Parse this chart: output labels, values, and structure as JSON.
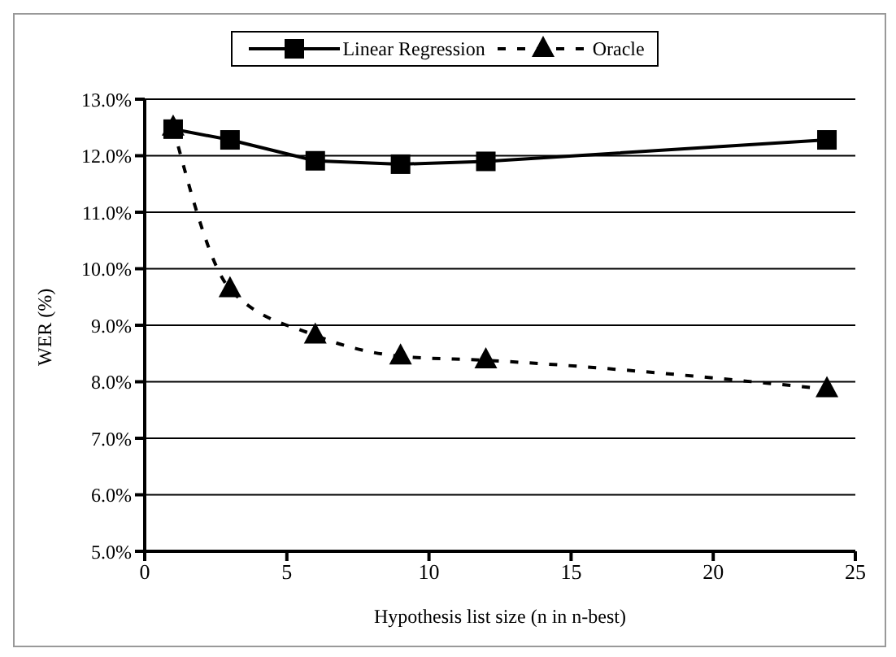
{
  "chart_data": {
    "type": "line",
    "xlabel": "Hypothesis list size (n in n-best)",
    "ylabel": "WER (%)",
    "x": [
      1,
      3,
      6,
      9,
      12,
      24
    ],
    "series": [
      {
        "name": "Linear Regression",
        "color": "#000000",
        "values": [
          12.47,
          12.28,
          11.91,
          11.85,
          11.9,
          12.28
        ],
        "marker": "square",
        "line_style": "solid"
      },
      {
        "name": "Oracle",
        "color": "#000000",
        "values": [
          12.5,
          9.64,
          8.82,
          8.45,
          8.38,
          7.87
        ],
        "marker": "triangle",
        "line_style": "dashed"
      }
    ],
    "xlim": [
      0,
      25
    ],
    "xticks": [
      0,
      5,
      10,
      15,
      20,
      25
    ],
    "ylim": [
      5,
      13
    ],
    "yticks": [
      {
        "value": 5,
        "label": "5.0%"
      },
      {
        "value": 6,
        "label": "6.0%"
      },
      {
        "value": 7,
        "label": "7.0%"
      },
      {
        "value": 8,
        "label": "8.0%"
      },
      {
        "value": 9,
        "label": "9.0%"
      },
      {
        "value": 10,
        "label": "10.0%"
      },
      {
        "value": 11,
        "label": "11.0%"
      },
      {
        "value": 12,
        "label": "12.0%"
      },
      {
        "value": 13,
        "label": "13.0%"
      }
    ],
    "grid": "y",
    "legend": "top"
  }
}
